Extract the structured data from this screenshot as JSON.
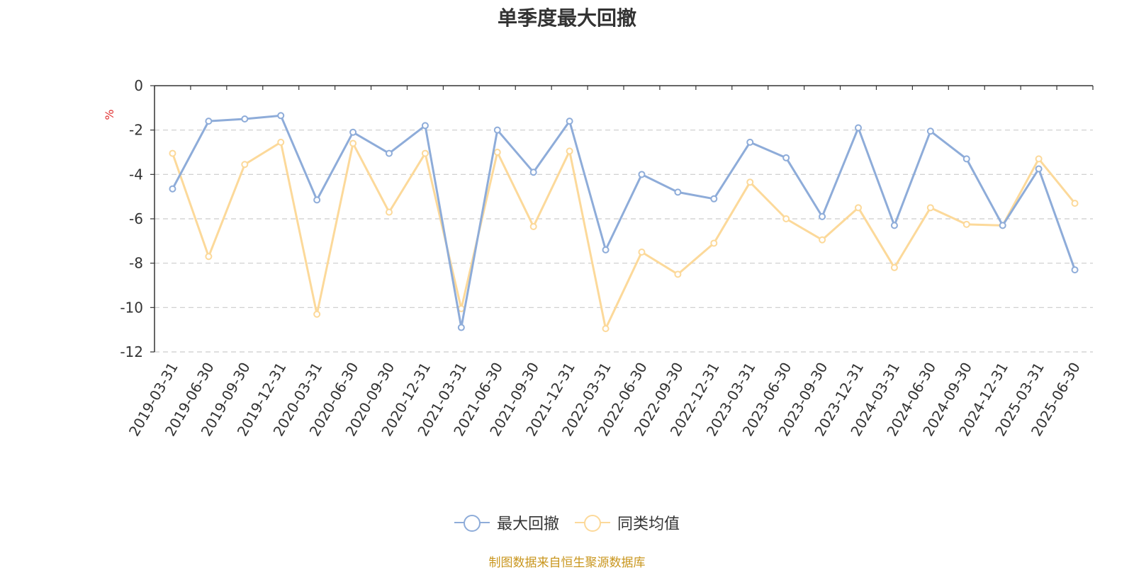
{
  "chart_data": {
    "type": "line",
    "title": "单季度最大回撤",
    "ylabel": "%",
    "ylim": [
      -12,
      0
    ],
    "yticks": [
      0,
      -2,
      -4,
      -6,
      -8,
      -10,
      -12
    ],
    "grid": true,
    "legend_position": "bottom-center",
    "categories": [
      "2019-03-31",
      "2019-06-30",
      "2019-09-30",
      "2019-12-31",
      "2020-03-31",
      "2020-06-30",
      "2020-09-30",
      "2020-12-31",
      "2021-03-31",
      "2021-06-30",
      "2021-09-30",
      "2021-12-31",
      "2022-03-31",
      "2022-06-30",
      "2022-09-30",
      "2022-12-31",
      "2023-03-31",
      "2023-06-30",
      "2023-09-30",
      "2023-12-31",
      "2024-03-31",
      "2024-06-30",
      "2024-09-30",
      "2024-12-31",
      "2025-03-31",
      "2025-06-30"
    ],
    "series": [
      {
        "name": "最大回撤",
        "color": "#8eacd9",
        "values": [
          -4.65,
          -1.6,
          -1.5,
          -1.35,
          -5.15,
          -2.1,
          -3.05,
          -1.8,
          -10.9,
          -2.0,
          -3.9,
          -1.6,
          -7.4,
          -4.0,
          -4.8,
          -5.1,
          -2.55,
          -3.25,
          -5.9,
          -1.9,
          -6.3,
          -2.05,
          -3.3,
          -6.3,
          -3.75,
          -8.3
        ]
      },
      {
        "name": "同类均值",
        "color": "#fcd99a",
        "values": [
          -3.05,
          -7.7,
          -3.55,
          -2.55,
          -10.3,
          -2.6,
          -5.7,
          -3.05,
          -10.05,
          -3.0,
          -6.35,
          -2.95,
          -10.95,
          -7.5,
          -8.5,
          -7.1,
          -4.35,
          -6.0,
          -6.95,
          -5.5,
          -8.2,
          -5.5,
          -6.25,
          -6.3,
          -3.3,
          -5.3
        ]
      }
    ],
    "source": "制图数据来自恒生聚源数据库",
    "source_color": "#c9961e",
    "ylabel_color": "#e03030"
  }
}
